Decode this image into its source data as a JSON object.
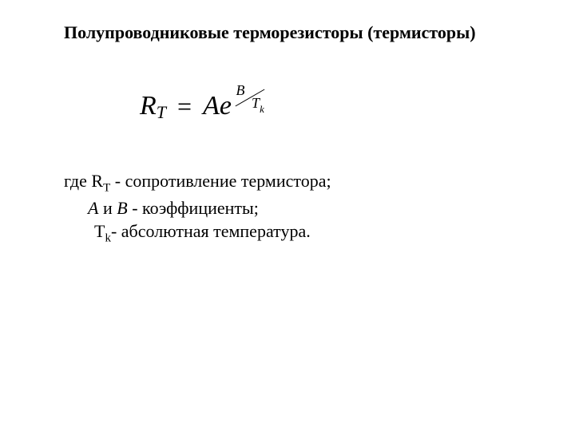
{
  "title": "Полупроводниковые терморезисторы (термисторы)",
  "formula": {
    "lhs_var": "R",
    "lhs_sub": "T",
    "eq": "=",
    "coef_a": "A",
    "base_e": "e",
    "exp_num": "B",
    "exp_denom_var": "T",
    "exp_denom_sub": "k"
  },
  "defs": {
    "line1_prefix": "где ",
    "line1_var": "R",
    "line1_sub": "T",
    "line1_text": " - сопротивление термистора;",
    "line2_a": "A",
    "line2_and": " и ",
    "line2_b": "B",
    "line2_text": " - коэффициенты;",
    "line3_var": "T",
    "line3_sub": "k",
    "line3_text": "- абсолютная температура."
  }
}
